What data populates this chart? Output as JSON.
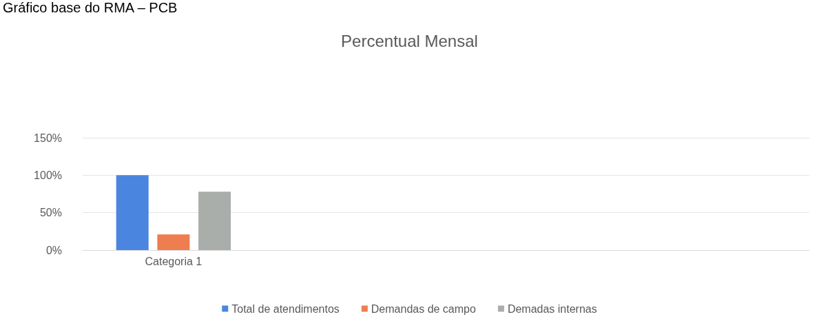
{
  "chart_data": {
    "type": "bar",
    "title": "Percentual Mensal",
    "annotations": [
      "Gráfico base do RMA – PCB"
    ],
    "categories": [
      "Categoria 1",
      null,
      null,
      null
    ],
    "series": [
      {
        "name": "Total de atendimentos",
        "color": "#4a86e0",
        "values": [
          100,
          null,
          null,
          null
        ]
      },
      {
        "name": "Demandas de campo",
        "color": "#ee7d50",
        "values": [
          21,
          null,
          null,
          null
        ]
      },
      {
        "name": "Demadas internas",
        "color": "#a9aeab",
        "values": [
          78,
          null,
          null,
          null
        ]
      }
    ],
    "ylim": [
      0,
      150
    ],
    "yticks": [
      {
        "value": 0,
        "label": "0%"
      },
      {
        "value": 50,
        "label": "50%"
      },
      {
        "value": 100,
        "label": "100%"
      },
      {
        "value": 150,
        "label": "150%"
      }
    ],
    "grid": "y",
    "legend": "bottom"
  }
}
